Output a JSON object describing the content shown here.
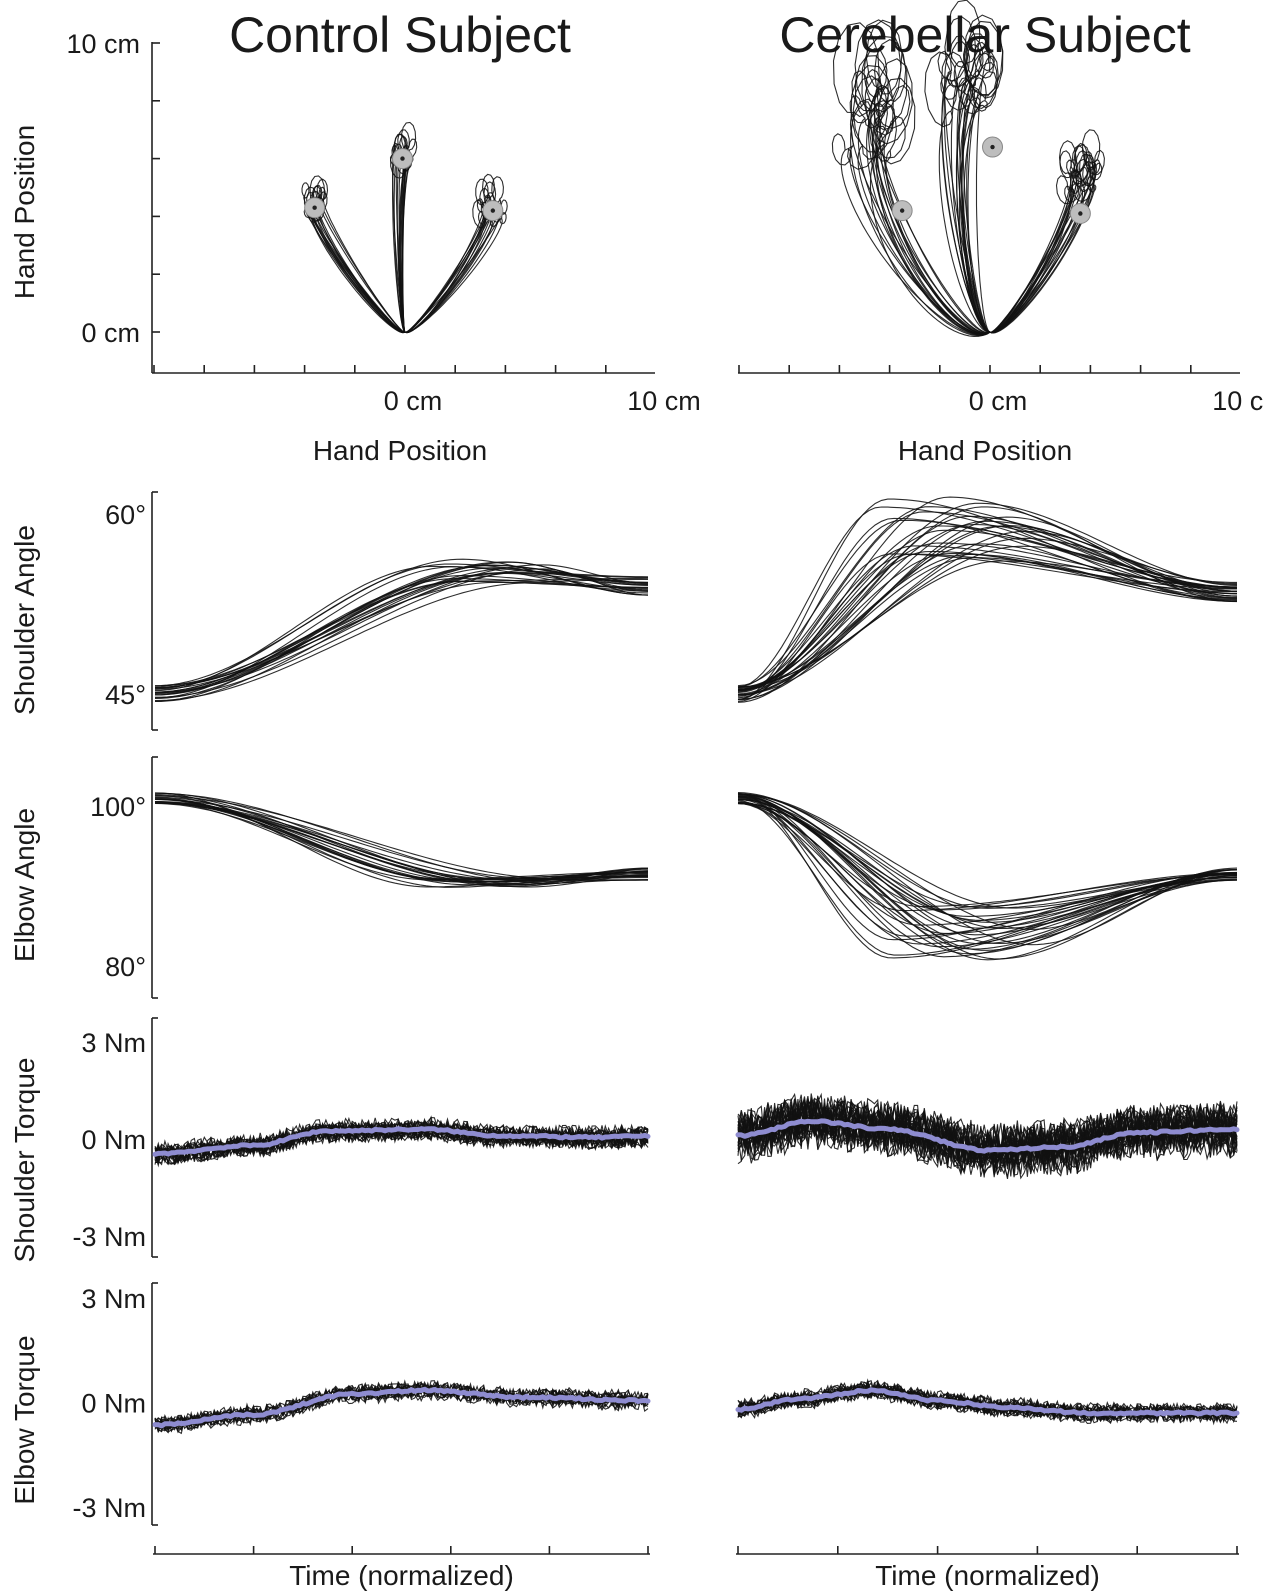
{
  "chart_data": {
    "type": "line",
    "columns": [
      {
        "id": "control",
        "title": "Control Subject"
      },
      {
        "id": "cerebellar",
        "title": "Cerebellar Subject"
      }
    ],
    "panels": {
      "hand_position": {
        "xlabel": "Hand Position",
        "ylabel": "Hand Position",
        "xticks": [
          {
            "v": 0,
            "label": "0 cm"
          },
          {
            "v": 10,
            "label": "10 cm"
          }
        ],
        "yticks": [
          {
            "v": 0,
            "label": "0 cm"
          },
          {
            "v": 10,
            "label": "10 cm"
          }
        ],
        "xlim": [
          -10,
          10
        ],
        "ylim": [
          -1,
          10
        ],
        "targets": {
          "control": [
            [
              -3.6,
              4.3
            ],
            [
              -0.1,
              6.0
            ],
            [
              3.5,
              4.2
            ]
          ],
          "cerebellar": [
            [
              -3.5,
              4.2
            ],
            [
              0.1,
              6.4
            ],
            [
              3.6,
              4.1
            ]
          ]
        },
        "paths": {
          "control": [
            {
              "tx": -3.6,
              "ty": 4.3,
              "n": 16,
              "curve": 0.4,
              "spread": 0.6
            },
            {
              "tx": -0.1,
              "ty": 6.0,
              "n": 16,
              "curve": 0.2,
              "spread": 0.5
            },
            {
              "tx": 3.5,
              "ty": 4.2,
              "n": 16,
              "curve": -0.4,
              "spread": 0.6
            }
          ],
          "cerebellar": [
            {
              "tx": -4.8,
              "ty": 7.4,
              "n": 20,
              "curve": 1.5,
              "spread": 1.4,
              "hook": 1.6
            },
            {
              "tx": -0.8,
              "ty": 8.6,
              "n": 20,
              "curve": 0.8,
              "spread": 1.2,
              "hook": 1.3
            },
            {
              "tx": 3.7,
              "ty": 5.4,
              "n": 20,
              "curve": -0.6,
              "spread": 0.9,
              "hook": 0.7
            }
          ]
        }
      },
      "shoulder_angle": {
        "ylabel": "Shoulder Angle",
        "yticks": [
          {
            "v": 45,
            "label": "45°"
          },
          {
            "v": 60,
            "label": "60°"
          }
        ],
        "ylim": [
          44,
          61
        ],
        "start": 45,
        "series": {
          "control": {
            "n": 22,
            "end": 54,
            "peak_min": 54.2,
            "peak_max": 56.3,
            "t_peak_min": 0.55,
            "t_peak_max": 0.8,
            "noise": 0
          },
          "cerebellar": {
            "n": 30,
            "end": 53.5,
            "peak_min": 56,
            "peak_max": 61.5,
            "t_peak_min": 0.28,
            "t_peak_max": 0.58,
            "noise": 0
          }
        }
      },
      "elbow_angle": {
        "ylabel": "Elbow Angle",
        "yticks": [
          {
            "v": 80,
            "label": "80°"
          },
          {
            "v": 100,
            "label": "100°"
          }
        ],
        "ylim": [
          77,
          108
        ],
        "start": 101,
        "series": {
          "control": {
            "n": 22,
            "end": 91.5,
            "peak_min": 91,
            "peak_max": 89.8,
            "t_peak_min": 0.55,
            "t_peak_max": 0.85,
            "noise": 0
          },
          "cerebellar": {
            "n": 30,
            "end": 91.5,
            "peak_min": 87.5,
            "peak_max": 80.5,
            "t_peak_min": 0.3,
            "t_peak_max": 0.6,
            "noise": 0
          }
        }
      },
      "shoulder_torque": {
        "ylabel": "Shoulder Torque",
        "yticks": [
          {
            "v": -3,
            "label": "-3 Nm"
          },
          {
            "v": 0,
            "label": "0 Nm"
          },
          {
            "v": 3,
            "label": "3 Nm"
          }
        ],
        "ylim": [
          -3.6,
          3.6
        ],
        "mean_color": "#8e8cd0",
        "series": {
          "control": {
            "n": 22,
            "noise": 0.28,
            "mean": [
              [
                0,
                -0.45
              ],
              [
                0.2,
                -0.2
              ],
              [
                0.35,
                0.25
              ],
              [
                0.55,
                0.3
              ],
              [
                0.7,
                0.1
              ],
              [
                0.9,
                0.05
              ],
              [
                1,
                0.1
              ]
            ]
          },
          "cerebellar": {
            "n": 30,
            "noise": 0.65,
            "mean": [
              [
                0,
                0.1
              ],
              [
                0.15,
                0.55
              ],
              [
                0.3,
                0.3
              ],
              [
                0.5,
                -0.35
              ],
              [
                0.65,
                -0.25
              ],
              [
                0.8,
                0.2
              ],
              [
                1,
                0.3
              ]
            ]
          }
        }
      },
      "elbow_torque": {
        "ylabel": "Elbow Torque",
        "xlabel": "Time (normalized)",
        "yticks": [
          {
            "v": -3,
            "label": "-3 Nm"
          },
          {
            "v": 0,
            "label": "0 Nm"
          },
          {
            "v": 3,
            "label": "3 Nm"
          }
        ],
        "ylim": [
          -3.6,
          3.6
        ],
        "mean_color": "#8e8cd0",
        "series": {
          "control": {
            "n": 16,
            "noise": 0.22,
            "mean": [
              [
                0,
                -0.65
              ],
              [
                0.2,
                -0.35
              ],
              [
                0.4,
                0.25
              ],
              [
                0.55,
                0.35
              ],
              [
                0.75,
                0.15
              ],
              [
                1,
                0.05
              ]
            ]
          },
          "cerebellar": {
            "n": 20,
            "noise": 0.22,
            "mean": [
              [
                0,
                -0.2
              ],
              [
                0.12,
                0.1
              ],
              [
                0.27,
                0.35
              ],
              [
                0.4,
                0.05
              ],
              [
                0.55,
                -0.15
              ],
              [
                0.7,
                -0.3
              ],
              [
                1,
                -0.3
              ]
            ]
          }
        }
      }
    }
  }
}
